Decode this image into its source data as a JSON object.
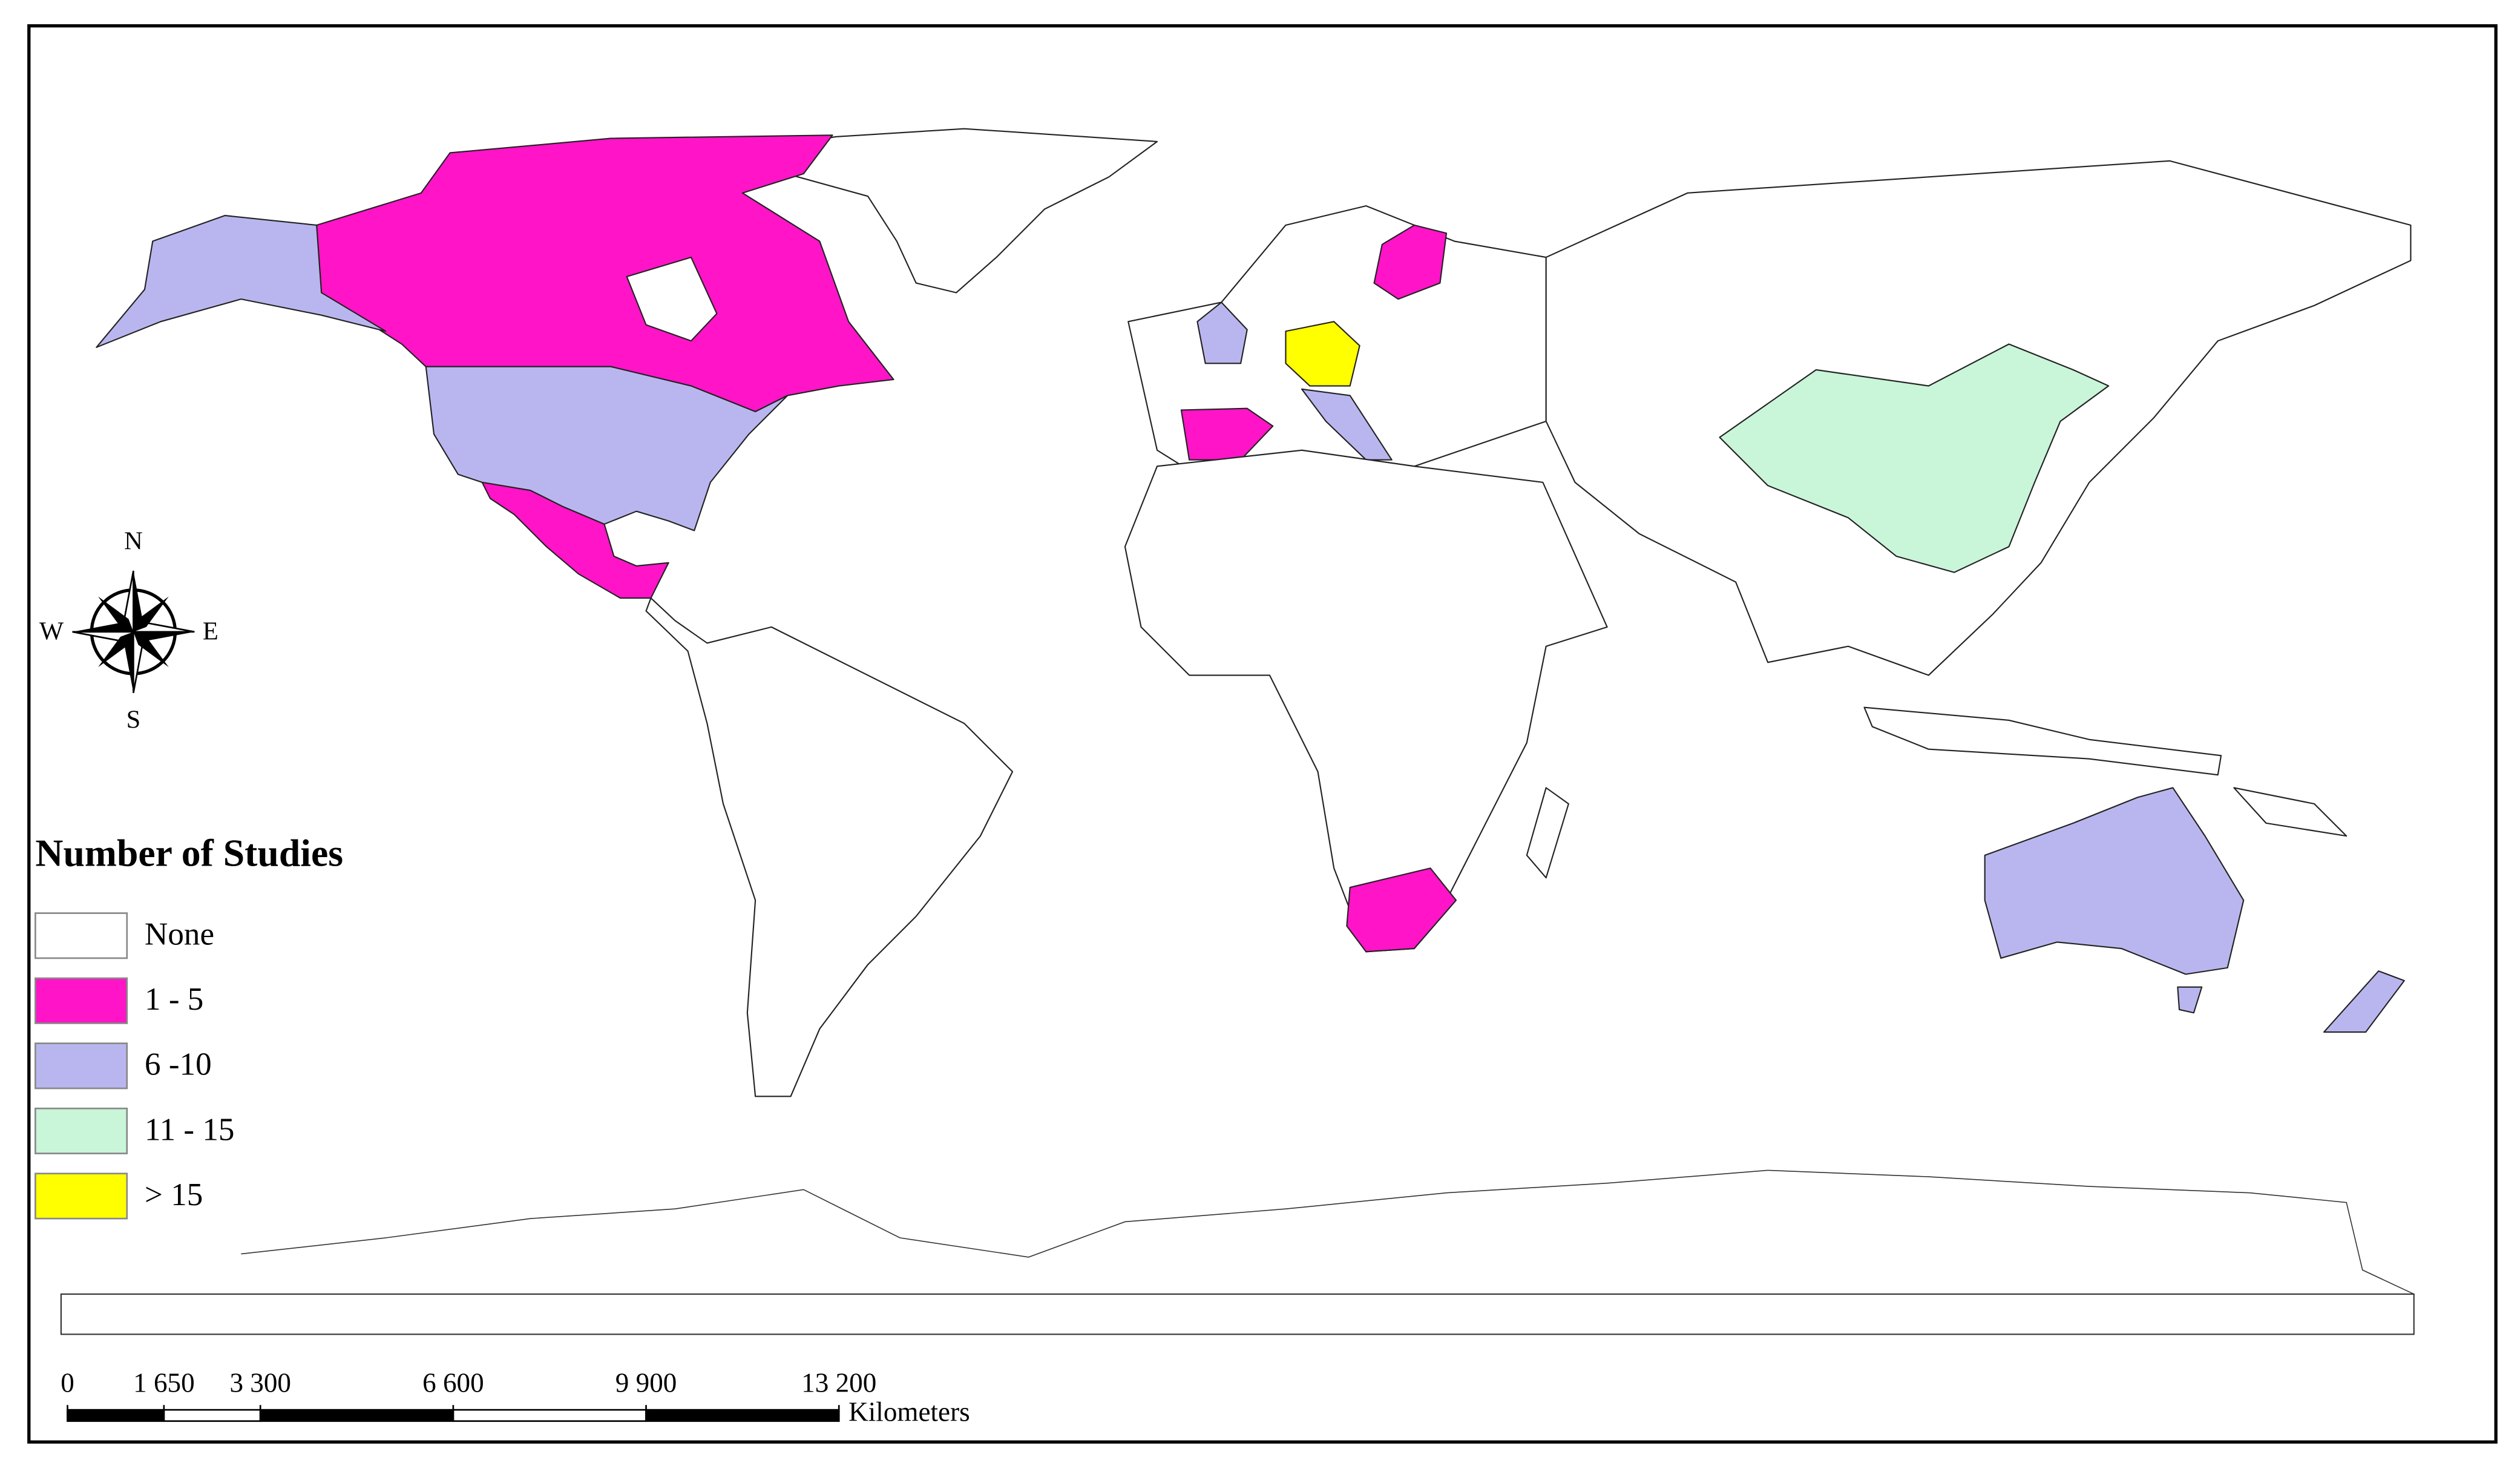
{
  "legend": {
    "title": "Number of Studies",
    "items": [
      {
        "label": "None",
        "color": "#ffffff"
      },
      {
        "label": "1 - 5",
        "color": "#ff14c8"
      },
      {
        "label": "6 -10",
        "color": "#b9b6ef"
      },
      {
        "label": "11 - 15",
        "color": "#c9f5d9"
      },
      {
        "label": "> 15",
        "color": "#ffff00"
      }
    ]
  },
  "compass": {
    "north": "N",
    "south": "S",
    "east": "E",
    "west": "W"
  },
  "scale_bar": {
    "ticks": [
      0,
      {
        "value": 1650,
        "label": "1 650"
      },
      {
        "value": 3300,
        "label": "3 300"
      },
      {
        "value": 6600,
        "label": "6 600"
      },
      {
        "value": 9900,
        "label": "9 900"
      },
      {
        "value": 13200,
        "label": "13 200"
      }
    ],
    "unit": "Kilometers"
  }
}
